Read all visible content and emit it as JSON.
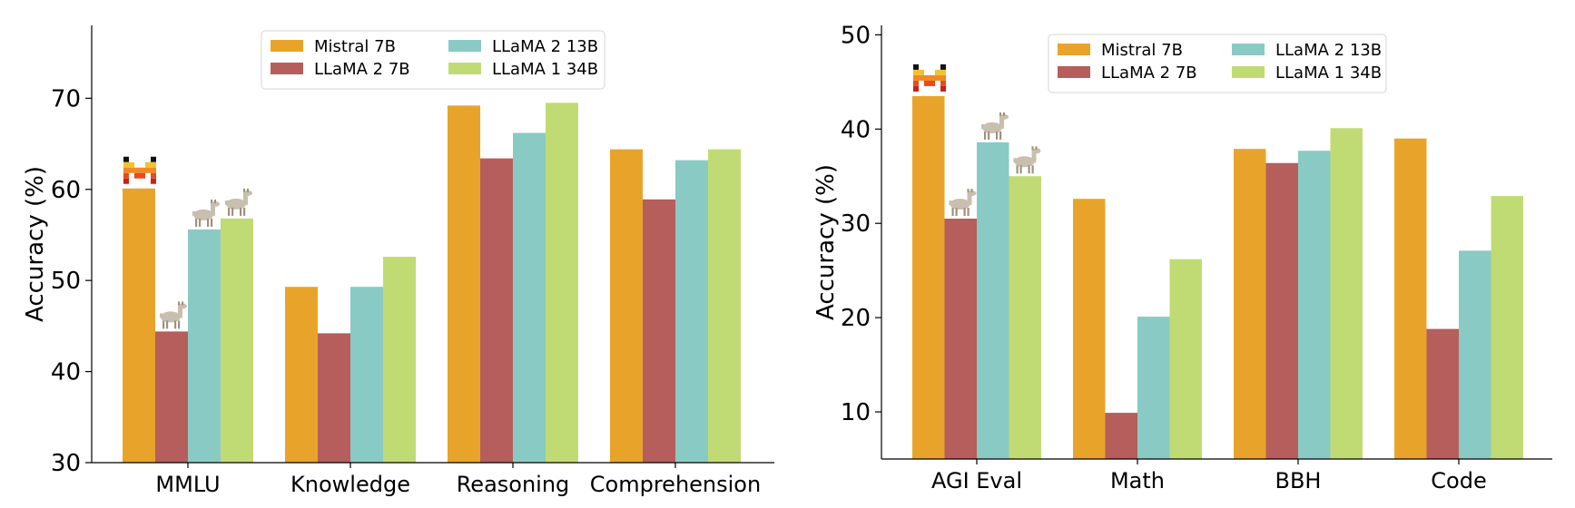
{
  "chart_data": [
    {
      "type": "bar",
      "categories": [
        "MMLU",
        "Knowledge",
        "Reasoning",
        "Comprehension"
      ],
      "series": [
        {
          "name": "Mistral 7B",
          "values": [
            60.1,
            49.3,
            69.2,
            64.4
          ]
        },
        {
          "name": "LLaMA 2 7B",
          "values": [
            44.4,
            44.2,
            63.4,
            58.9
          ]
        },
        {
          "name": "LLaMA 2 13B",
          "values": [
            55.6,
            49.3,
            66.2,
            63.2
          ]
        },
        {
          "name": "LLaMA 1 34B",
          "values": [
            56.8,
            52.6,
            69.5,
            64.4
          ]
        }
      ],
      "ylabel": "Accuracy (%)",
      "ylim": [
        30,
        78
      ],
      "yticks": [
        "30",
        "40",
        "50",
        "60",
        "70"
      ],
      "grid": false,
      "legend_position": "top-center",
      "logo_markers": [
        {
          "series": 0,
          "category": 0,
          "icon": "mistral-logo-icon"
        },
        {
          "series": 1,
          "category": 0,
          "icon": "llama-icon"
        },
        {
          "series": 2,
          "category": 0,
          "icon": "llama-icon"
        },
        {
          "series": 3,
          "category": 0,
          "icon": "llama-icon"
        }
      ]
    },
    {
      "type": "bar",
      "categories": [
        "AGI Eval",
        "Math",
        "BBH",
        "Code"
      ],
      "series": [
        {
          "name": "Mistral 7B",
          "values": [
            43.5,
            32.6,
            37.9,
            39.0
          ]
        },
        {
          "name": "LLaMA 2 7B",
          "values": [
            30.5,
            9.9,
            36.4,
            18.8
          ]
        },
        {
          "name": "LLaMA 2 13B",
          "values": [
            38.6,
            20.1,
            37.7,
            27.1
          ]
        },
        {
          "name": "LLaMA 1 34B",
          "values": [
            35.0,
            26.2,
            40.1,
            32.9
          ]
        }
      ],
      "ylabel": "Accuracy (%)",
      "ylim": [
        5,
        51
      ],
      "yticks": [
        "10",
        "20",
        "30",
        "40",
        "50"
      ],
      "grid": false,
      "legend_position": "top-center",
      "logo_markers": [
        {
          "series": 0,
          "category": 0,
          "icon": "mistral-logo-icon"
        },
        {
          "series": 1,
          "category": 0,
          "icon": "llama-icon"
        },
        {
          "series": 2,
          "category": 0,
          "icon": "llama-icon"
        },
        {
          "series": 3,
          "category": 0,
          "icon": "llama-icon"
        }
      ]
    }
  ],
  "colors": {
    "Mistral 7B": "#E8A42A",
    "LLaMA 2 7B": "#B55E5C",
    "LLaMA 2 13B": "#8ACAC4",
    "LLaMA 1 34B": "#C1DB74"
  }
}
